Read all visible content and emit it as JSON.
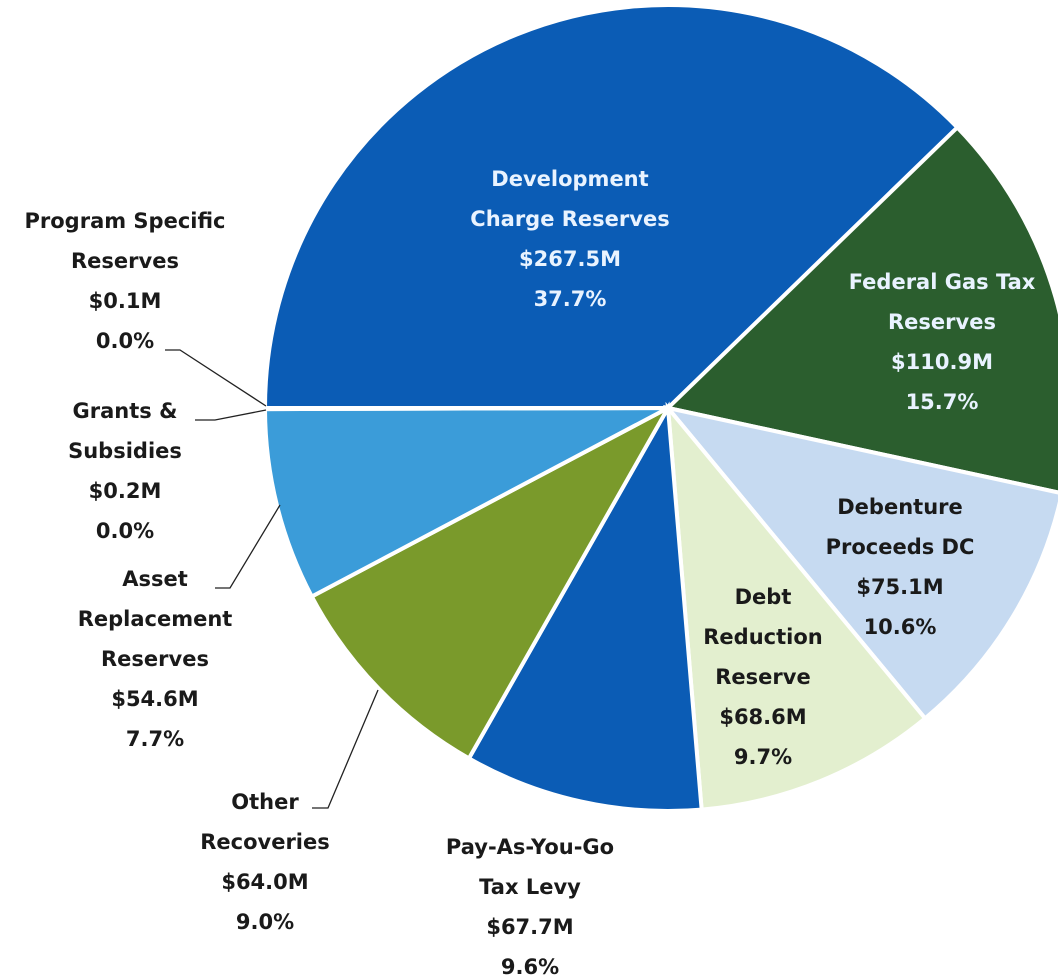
{
  "chart_data": {
    "type": "pie",
    "categories": [
      "Development\nCharge Reserves",
      "Federal Gas Tax\nReserves",
      "Debenture\nProceeds DC",
      "Debt\nReduction\nReserve",
      "Pay-As-You-Go\nTax Levy",
      "Other\nRecoveries",
      "Asset\nReplacement\nReserves",
      "Grants &\nSubsidies",
      "Program Specific\nReserves"
    ],
    "values": [
      267.5,
      110.9,
      75.1,
      68.6,
      67.7,
      64.0,
      54.6,
      0.2,
      0.1
    ],
    "value_labels": [
      "$267.5M",
      "$110.9M",
      "$75.1M",
      "$68.6M",
      "$67.7M",
      "$64.0M",
      "$54.6M",
      "$0.2M",
      "$0.1M"
    ],
    "percent_labels": [
      "37.7%",
      "15.7%",
      "10.6%",
      "9.7%",
      "9.6%",
      "9.0%",
      "7.7%",
      "0.0%",
      "0.0%"
    ],
    "colors": [
      "#0b5cb5",
      "#2b5e2e",
      "#c6daf1",
      "#e3efcf",
      "#0b5cb5",
      "#7a9a2b",
      "#3b9cd9",
      "#4a6fa5",
      "#8aa"
    ],
    "label_colors": [
      "#e9f3ff",
      "#e9f3ff",
      "#1a1a1a",
      "#1a1a1a",
      "#1a1a1a",
      "#1a1a1a",
      "#1a1a1a",
      "#1a1a1a",
      "#1a1a1a"
    ]
  }
}
